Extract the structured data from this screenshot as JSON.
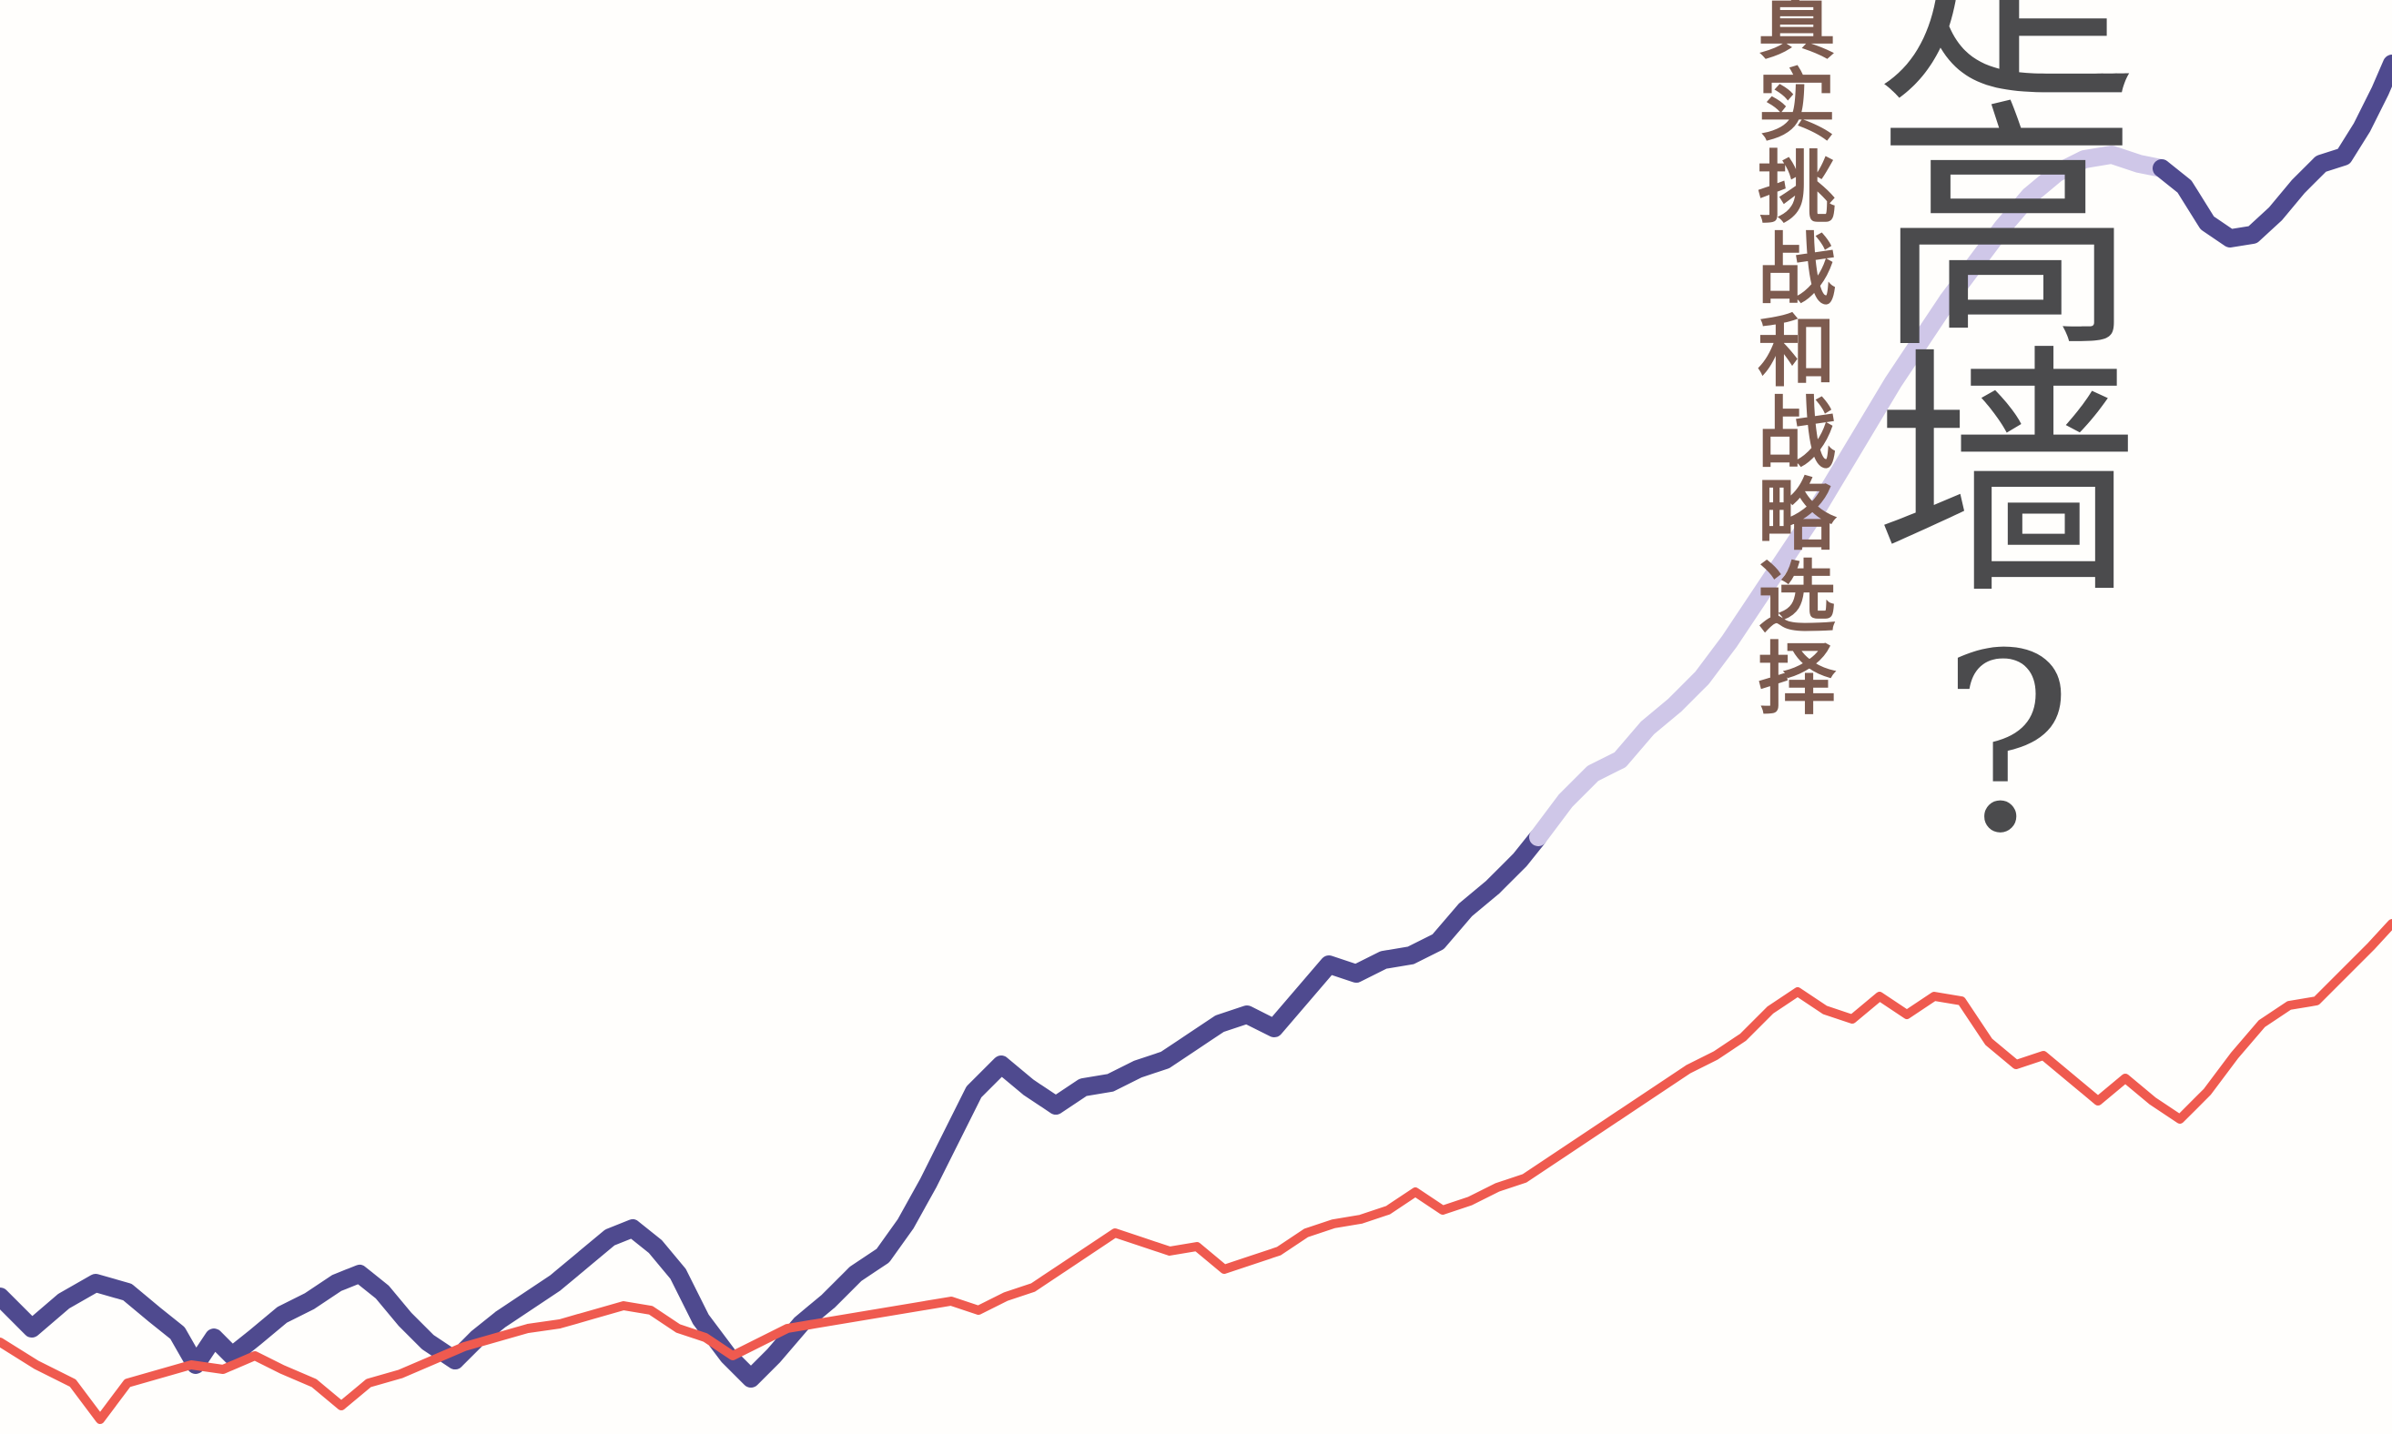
{
  "cover": {
    "title_chars": [
      "是",
      "高",
      "墙",
      "?"
    ],
    "subtitle_chars": [
      "真",
      "实",
      "挑",
      "战",
      "和",
      "战",
      "略",
      "选",
      "择"
    ]
  },
  "colors": {
    "background": "#fffefc",
    "line_purple": "#4f4a8f",
    "line_purple_light": "#cfc7e8",
    "line_red": "#ef5a4f",
    "title": "#4b4b4d",
    "subtitle": "#7d5b4f"
  }
}
